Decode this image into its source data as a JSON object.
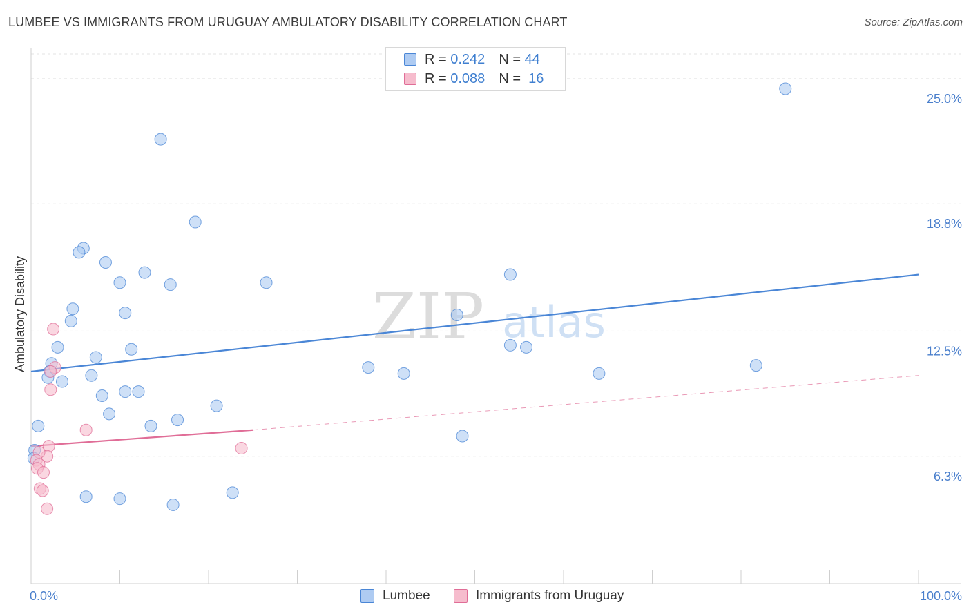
{
  "header": {
    "title": "LUMBEE VS IMMIGRANTS FROM URUGUAY AMBULATORY DISABILITY CORRELATION CHART",
    "source": "Source: ZipAtlas.com"
  },
  "legend_top": {
    "rows": [
      {
        "r_label": "R =",
        "r_value": "0.242",
        "n_label": "N =",
        "n_value": "44",
        "color": "#aecbf2"
      },
      {
        "r_label": "R =",
        "r_value": "0.088",
        "n_label": "N =",
        "n_value": "16",
        "color": "#f6bccd"
      }
    ]
  },
  "legend_bottom": {
    "items": [
      {
        "label": "Lumbee",
        "color": "#aecbf2"
      },
      {
        "label": "Immigrants from Uruguay",
        "color": "#f6bccd"
      }
    ]
  },
  "watermark": {
    "zip": "ZIP",
    "atlas": "atlas"
  },
  "chart_data": {
    "type": "scatter",
    "title": "LUMBEE VS IMMIGRANTS FROM URUGUAY AMBULATORY DISABILITY CORRELATION CHART",
    "xlabel": "",
    "ylabel": "Ambulatory Disability",
    "xlim": [
      0,
      100
    ],
    "ylim": [
      0,
      26.5
    ],
    "x_tick_labels": [
      "0.0%",
      "100.0%"
    ],
    "y_ticks": [
      6.3,
      12.5,
      18.8,
      25.0
    ],
    "y_tick_labels": [
      "6.3%",
      "12.5%",
      "18.8%",
      "25.0%"
    ],
    "grid": "horizontal dashed",
    "legend_position": "top-center",
    "series": [
      {
        "name": "Lumbee",
        "color": "#4a86d6",
        "fill": "#aecbf2",
        "points": [
          [
            85.0,
            24.5
          ],
          [
            14.6,
            22.0
          ],
          [
            18.5,
            17.9
          ],
          [
            5.9,
            16.6
          ],
          [
            5.4,
            16.4
          ],
          [
            8.4,
            15.9
          ],
          [
            12.8,
            15.4
          ],
          [
            10.0,
            14.9
          ],
          [
            15.7,
            14.8
          ],
          [
            26.5,
            14.9
          ],
          [
            48.0,
            13.3
          ],
          [
            4.7,
            13.6
          ],
          [
            10.6,
            13.4
          ],
          [
            4.5,
            13.0
          ],
          [
            54.0,
            15.3
          ],
          [
            3.0,
            11.7
          ],
          [
            11.3,
            11.6
          ],
          [
            7.3,
            11.2
          ],
          [
            2.3,
            10.9
          ],
          [
            54.0,
            11.8
          ],
          [
            55.8,
            11.7
          ],
          [
            2.1,
            10.5
          ],
          [
            1.9,
            10.2
          ],
          [
            3.5,
            10.0
          ],
          [
            6.8,
            10.3
          ],
          [
            38.0,
            10.7
          ],
          [
            42.0,
            10.4
          ],
          [
            64.0,
            10.4
          ],
          [
            81.7,
            10.8
          ],
          [
            8.0,
            9.3
          ],
          [
            10.6,
            9.5
          ],
          [
            12.1,
            9.5
          ],
          [
            20.9,
            8.8
          ],
          [
            8.8,
            8.4
          ],
          [
            16.5,
            8.1
          ],
          [
            0.8,
            7.8
          ],
          [
            13.5,
            7.8
          ],
          [
            48.6,
            7.3
          ],
          [
            0.4,
            6.6
          ],
          [
            0.3,
            6.2
          ],
          [
            6.2,
            4.3
          ],
          [
            10.0,
            4.2
          ],
          [
            16.0,
            3.9
          ],
          [
            22.7,
            4.5
          ]
        ],
        "trend": {
          "x": [
            0,
            100
          ],
          "y": [
            10.5,
            15.3
          ],
          "style": "solid"
        }
      },
      {
        "name": "Immigrants from Uruguay",
        "color": "#e06d97",
        "fill": "#f6bccd",
        "points": [
          [
            2.5,
            12.6
          ],
          [
            2.7,
            10.7
          ],
          [
            2.2,
            10.5
          ],
          [
            2.2,
            9.6
          ],
          [
            6.2,
            7.6
          ],
          [
            23.7,
            6.7
          ],
          [
            2.0,
            6.8
          ],
          [
            1.8,
            6.3
          ],
          [
            0.9,
            6.5
          ],
          [
            0.6,
            6.1
          ],
          [
            0.9,
            5.9
          ],
          [
            0.7,
            5.7
          ],
          [
            1.4,
            5.5
          ],
          [
            1.0,
            4.7
          ],
          [
            1.3,
            4.6
          ],
          [
            1.8,
            3.7
          ]
        ],
        "trend": {
          "x": [
            0,
            25,
            100
          ],
          "y": [
            6.8,
            7.6,
            10.3
          ],
          "solid_until": 25,
          "style": "solid then dashed"
        }
      }
    ]
  }
}
